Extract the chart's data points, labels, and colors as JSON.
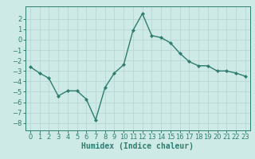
{
  "x": [
    0,
    1,
    2,
    3,
    4,
    5,
    6,
    7,
    8,
    9,
    10,
    11,
    12,
    13,
    14,
    15,
    16,
    17,
    18,
    19,
    20,
    21,
    22,
    23
  ],
  "y": [
    -2.6,
    -3.2,
    -3.7,
    -5.4,
    -4.9,
    -4.9,
    -5.7,
    -7.7,
    -4.6,
    -3.2,
    -2.4,
    0.9,
    2.5,
    0.4,
    0.2,
    -0.3,
    -1.3,
    -2.1,
    -2.5,
    -2.5,
    -3.0,
    -3.0,
    -3.2,
    -3.5
  ],
  "line_color": "#2e7d6e",
  "marker": "D",
  "marker_size": 2.2,
  "bg_color": "#ceeae7",
  "grid_color": "#b8d8d5",
  "xlabel": "Humidex (Indice chaleur)",
  "xlim": [
    -0.5,
    23.5
  ],
  "ylim": [
    -8.7,
    3.2
  ],
  "yticks": [
    -8,
    -7,
    -6,
    -5,
    -4,
    -3,
    -2,
    -1,
    0,
    1,
    2
  ],
  "xticks": [
    0,
    1,
    2,
    3,
    4,
    5,
    6,
    7,
    8,
    9,
    10,
    11,
    12,
    13,
    14,
    15,
    16,
    17,
    18,
    19,
    20,
    21,
    22,
    23
  ],
  "tick_fontsize": 6.0,
  "xlabel_fontsize": 7.0,
  "linewidth": 1.0
}
